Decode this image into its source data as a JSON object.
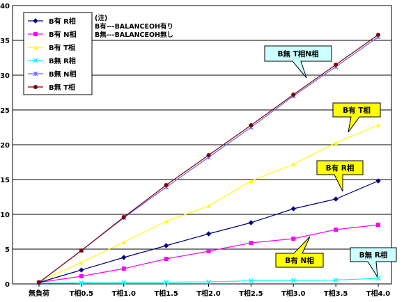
{
  "chart_data": {
    "type": "line",
    "categories": [
      "無負荷",
      "T相0.5",
      "T相1.0",
      "T相1.5",
      "T相2.0",
      "T相2.5",
      "T相3.0",
      "T相3.5",
      "T相4.0"
    ],
    "ylim": [
      0,
      40
    ],
    "yticks": [
      0,
      5,
      10,
      15,
      20,
      25,
      30,
      35,
      40
    ],
    "grid": "horizontal",
    "legend_position": "top-left",
    "series": [
      {
        "name": "B有  R相",
        "color": "#000080",
        "marker": "diamond",
        "values": [
          0.2,
          2.0,
          3.8,
          5.5,
          7.2,
          8.8,
          10.8,
          12.2,
          14.8
        ]
      },
      {
        "name": "B有  N相",
        "color": "#ff00ff",
        "marker": "square",
        "values": [
          0.2,
          1.1,
          2.2,
          3.6,
          4.7,
          5.9,
          6.5,
          7.8,
          8.5
        ]
      },
      {
        "name": "B有  T相",
        "color": "#ffff00",
        "marker": "triangle",
        "values": [
          0.3,
          3.1,
          6.0,
          9.0,
          11.2,
          14.8,
          17.2,
          20.3,
          22.8
        ]
      },
      {
        "name": "B無  R相",
        "color": "#00ffff",
        "marker": "x",
        "values": [
          0.1,
          0.15,
          0.2,
          0.25,
          0.3,
          0.45,
          0.5,
          0.55,
          0.8
        ]
      },
      {
        "name": "B無  N相",
        "color": "#6666ff",
        "marker": "star",
        "values": [
          0.2,
          4.8,
          9.5,
          13.9,
          18.2,
          22.5,
          27.0,
          31.2,
          35.5
        ]
      },
      {
        "name": "B無  T相",
        "color": "#800000",
        "marker": "circle",
        "values": [
          0.2,
          4.8,
          9.6,
          14.2,
          18.5,
          22.8,
          27.2,
          31.5,
          35.8
        ]
      }
    ],
    "note": {
      "line1": "(注)",
      "line2": "B有---BALANCEOH有り",
      "line3": "B無---BALANCEOH無し"
    },
    "callouts": [
      {
        "text": "B無  T相N相",
        "fill": "#ccffff",
        "series_index": 4,
        "point_index": 5
      },
      {
        "text": "B有  T相",
        "fill": "#ffff00",
        "series_index": 2,
        "point_index": 7
      },
      {
        "text": "B有  R相",
        "fill": "#ffff00",
        "series_index": 0,
        "point_index": 8
      },
      {
        "text": "B有  N相",
        "fill": "#ffff00",
        "series_index": 1,
        "point_index": 6
      },
      {
        "text": "B無  R相",
        "fill": "#ccffff",
        "series_index": 3,
        "point_index": 8
      }
    ]
  }
}
